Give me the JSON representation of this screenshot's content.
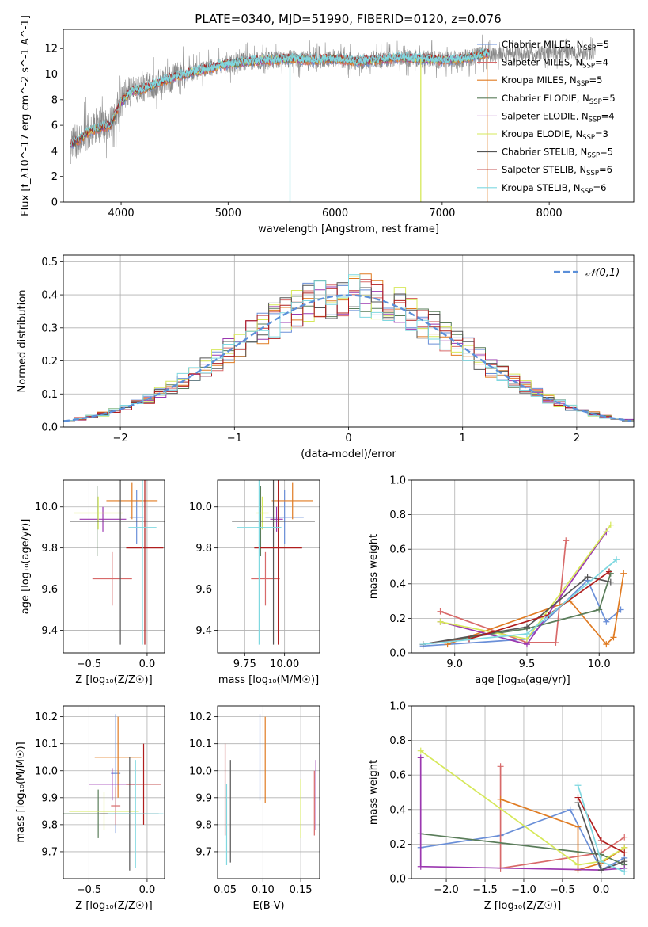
{
  "figure": {
    "suptitle": "PLATE=0340, MJD=51990, FIBERID=0120, z=0.076"
  },
  "series": [
    {
      "key": "chabrier_miles",
      "color": "#6a8fd8"
    },
    {
      "key": "salpeter_miles",
      "color": "#d86a6a"
    },
    {
      "key": "kroupa_miles",
      "color": "#e07b22"
    },
    {
      "key": "chabrier_elodie",
      "color": "#5a7d5a"
    },
    {
      "key": "salpeter_elodie",
      "color": "#9b38b0"
    },
    {
      "key": "kroupa_elodie",
      "color": "#d6e85a"
    },
    {
      "key": "chabrier_stelib",
      "color": "#555555"
    },
    {
      "key": "salpeter_stelib",
      "color": "#b01e1e"
    },
    {
      "key": "kroupa_stelib",
      "color": "#7fd8e0"
    }
  ],
  "colors": {
    "pink": "#e377c2",
    "spectrum_gray": "#888888",
    "gauss": "#5b8fd9"
  },
  "chart_data": [
    {
      "id": "spectrum",
      "type": "line",
      "title": "PLATE=0340, MJD=51990, FIBERID=0120, z=0.076",
      "xlabel": "wavelength [Angstrom, rest frame]",
      "ylabel": "Flux [f_λ10^-17 erg cm^-2 s^-1 A^-1]",
      "xlim": [
        3460,
        8790
      ],
      "ylim": [
        0,
        13.5
      ],
      "xticks": [
        4000,
        5000,
        6000,
        7000,
        8000
      ],
      "yticks": [
        0,
        2,
        4,
        6,
        8,
        10,
        12
      ],
      "grid": false,
      "legend_position": "right",
      "legend": [
        {
          "lib": "Chabrier MILES, N",
          "sub": "SSP",
          "n": "=5"
        },
        {
          "lib": "Salpeter MILES, N",
          "sub": "SSP",
          "n": "=4"
        },
        {
          "lib": "Kroupa MILES, N",
          "sub": "SSP",
          "n": "=5"
        },
        {
          "lib": "Chabrier ELODIE, N",
          "sub": "SSP",
          "n": "=5"
        },
        {
          "lib": "Salpeter ELODIE, N",
          "sub": "SSP",
          "n": "=4"
        },
        {
          "lib": "Kroupa ELODIE, N",
          "sub": "SSP",
          "n": "=3"
        },
        {
          "lib": "Chabrier STELIB, N",
          "sub": "SSP",
          "n": "=5"
        },
        {
          "lib": "Salpeter STELIB, N",
          "sub": "SSP",
          "n": "=6"
        },
        {
          "lib": "Kroupa STELIB, N",
          "sub": "SSP",
          "n": "=6"
        }
      ],
      "envelope": {
        "x": [
          3530,
          3600,
          3700,
          3800,
          3900,
          4000,
          4100,
          4200,
          4400,
          4600,
          4800,
          5000,
          5200,
          5400,
          5600,
          5800,
          6000,
          6200,
          6400,
          6600,
          6800,
          7000,
          7200,
          7400
        ],
        "y": [
          4.5,
          4.8,
          5.5,
          5.8,
          6.0,
          7.8,
          8.7,
          8.8,
          9.5,
          10.0,
          10.4,
          10.8,
          11.0,
          11.1,
          11.2,
          11.1,
          11.2,
          11.0,
          11.1,
          11.3,
          11.2,
          11.1,
          11.2,
          11.6
        ]
      },
      "data_range": [
        3530,
        8430
      ],
      "spikes": [
        {
          "x": 5578,
          "y": 0,
          "series": 8
        },
        {
          "x": 6800,
          "y": 0,
          "series": 5
        },
        {
          "x": 7420,
          "y": 0,
          "series": 2
        }
      ]
    },
    {
      "id": "residuals",
      "type": "histogram",
      "xlabel": "(data-model)/error",
      "ylabel": "Normed distribution",
      "xlim": [
        -2.5,
        2.5
      ],
      "ylim": [
        0,
        0.52
      ],
      "xticks": [
        -2,
        -1,
        0,
        1,
        2
      ],
      "yticks": [
        0.0,
        0.1,
        0.2,
        0.3,
        0.4,
        0.5
      ],
      "grid": true,
      "bin_width": 0.1,
      "gaussian": {
        "label": "𝒩(0,1)",
        "mean": 0,
        "sigma": 1
      },
      "legend_position": "top-right"
    },
    {
      "id": "age_vs_Z",
      "type": "scatter",
      "xlabel": "Z [log₁₀(Z/Z☉)]",
      "ylabel": "age  [log₁₀(age/yr)]",
      "xlim": [
        -0.72,
        0.15
      ],
      "ylim": [
        9.29,
        10.13
      ],
      "xticks": [
        -0.5,
        0.0
      ],
      "yticks": [
        9.4,
        9.6,
        9.8,
        10.0
      ],
      "grid": true,
      "points": [
        {
          "s": 0,
          "x": -0.09,
          "xerr": 0.06,
          "y": 9.95,
          "yerr": 0.13
        },
        {
          "s": 1,
          "x": -0.3,
          "xerr": 0.17,
          "y": 9.65,
          "yerr": 0.13
        },
        {
          "s": 2,
          "x": -0.13,
          "xerr": 0.22,
          "y": 10.03,
          "yerr": 0.09
        },
        {
          "s": 3,
          "x": -0.43,
          "xerr": 0.14,
          "y": 9.93,
          "yerr": 0.17
        },
        {
          "s": 4,
          "x": -0.38,
          "xerr": 0.2,
          "y": 9.94,
          "yerr": 0.06
        },
        {
          "s": 5,
          "x": -0.42,
          "xerr": 0.21,
          "y": 9.97,
          "yerr": 0.08
        },
        {
          "s": 6,
          "x": -0.23,
          "xerr": 0.43,
          "y": 9.93,
          "yerr": 0.6
        },
        {
          "s": 7,
          "x": -0.02,
          "xerr": 0.16,
          "y": 9.8,
          "yerr": 0.47
        },
        {
          "s": 8,
          "x": -0.04,
          "xerr": 0.12,
          "y": 9.9,
          "yerr": 0.57
        }
      ]
    },
    {
      "id": "age_vs_mass",
      "type": "scatter",
      "xlabel": "mass [log₁₀(M/M☉)]",
      "ylabel": "",
      "xlim": [
        9.58,
        10.22
      ],
      "ylim": [
        9.29,
        10.13
      ],
      "xticks": [
        9.75,
        10.0
      ],
      "xticklabels": [
        "9.75",
        "10.00"
      ],
      "yticks": [
        9.4,
        9.6,
        9.8,
        10.0
      ],
      "grid": true,
      "points": [
        {
          "s": 0,
          "x": 10.0,
          "xerr": 0.12,
          "y": 9.95,
          "yerr": 0.13
        },
        {
          "s": 1,
          "x": 9.88,
          "xerr": 0.09,
          "y": 9.65,
          "yerr": 0.13
        },
        {
          "s": 2,
          "x": 10.05,
          "xerr": 0.13,
          "y": 10.03,
          "yerr": 0.09
        },
        {
          "s": 3,
          "x": 9.85,
          "xerr": 0.08,
          "y": 9.93,
          "yerr": 0.17
        },
        {
          "s": 4,
          "x": 9.95,
          "xerr": 0.04,
          "y": 9.94,
          "yerr": 0.06
        },
        {
          "s": 5,
          "x": 9.86,
          "xerr": 0.04,
          "y": 9.97,
          "yerr": 0.08
        },
        {
          "s": 6,
          "x": 9.93,
          "xerr": 0.26,
          "y": 9.93,
          "yerr": 0.6
        },
        {
          "s": 7,
          "x": 9.96,
          "xerr": 0.15,
          "y": 9.8,
          "yerr": 0.47
        },
        {
          "s": 8,
          "x": 9.84,
          "xerr": 0.14,
          "y": 9.9,
          "yerr": 0.57
        }
      ]
    },
    {
      "id": "weight_vs_age",
      "type": "line",
      "xlabel": "age  [log₁₀(age/yr)]",
      "ylabel": "mass weight",
      "xlim": [
        8.7,
        10.24
      ],
      "ylim": [
        0,
        1.0
      ],
      "xticks": [
        9.0,
        9.5,
        10.0
      ],
      "yticks": [
        0.0,
        0.2,
        0.4,
        0.6,
        0.8,
        1.0
      ],
      "grid": true,
      "lines": [
        {
          "s": 0,
          "x": [
            8.78,
            9.5,
            9.92,
            10.05,
            10.15
          ],
          "y": [
            0.04,
            0.08,
            0.42,
            0.18,
            0.25
          ]
        },
        {
          "s": 1,
          "x": [
            8.9,
            9.5,
            9.7,
            9.77
          ],
          "y": [
            0.24,
            0.06,
            0.06,
            0.65
          ]
        },
        {
          "s": 2,
          "x": [
            8.95,
            9.8,
            10.05,
            10.1,
            10.17
          ],
          "y": [
            0.05,
            0.3,
            0.05,
            0.09,
            0.46
          ]
        },
        {
          "s": 3,
          "x": [
            8.78,
            9.5,
            10.0,
            10.08
          ],
          "y": [
            0.05,
            0.14,
            0.25,
            0.46
          ]
        },
        {
          "s": 4,
          "x": [
            8.9,
            9.5,
            10.05
          ],
          "y": [
            0.18,
            0.05,
            0.7
          ]
        },
        {
          "s": 5,
          "x": [
            8.9,
            9.5,
            10.08
          ],
          "y": [
            0.18,
            0.08,
            0.74
          ]
        },
        {
          "s": 6,
          "x": [
            8.78,
            9.5,
            9.92,
            10.08
          ],
          "y": [
            0.05,
            0.15,
            0.44,
            0.41
          ]
        },
        {
          "s": 7,
          "x": [
            8.78,
            9.1,
            9.65,
            10.07
          ],
          "y": [
            0.05,
            0.08,
            0.22,
            0.47
          ]
        },
        {
          "s": 8,
          "x": [
            8.78,
            9.5,
            10.12
          ],
          "y": [
            0.05,
            0.11,
            0.54
          ]
        }
      ]
    },
    {
      "id": "mass_vs_Z",
      "type": "scatter",
      "xlabel": "Z [log₁₀(Z/Z☉)]",
      "ylabel": "mass [log₁₀(M/M☉)]",
      "xlim": [
        -0.72,
        0.15
      ],
      "ylim": [
        9.6,
        10.24
      ],
      "xticks": [
        -0.5,
        0.0
      ],
      "yticks": [
        9.7,
        9.8,
        9.9,
        10.0,
        10.1,
        10.2
      ],
      "grid": true,
      "points": [
        {
          "s": 0,
          "x": -0.27,
          "xerr": 0.04,
          "y": 9.99,
          "yerr": 0.22
        },
        {
          "s": 1,
          "x": -0.27,
          "xerr": 0.04,
          "y": 9.87,
          "yerr": 0.07
        },
        {
          "s": 2,
          "x": -0.25,
          "xerr": 0.2,
          "y": 10.05,
          "yerr": 0.15
        },
        {
          "s": 3,
          "x": -0.42,
          "xerr": 0.3,
          "y": 9.84,
          "yerr": 0.09
        },
        {
          "s": 4,
          "x": -0.3,
          "xerr": 0.2,
          "y": 9.95,
          "yerr": 0.06
        },
        {
          "s": 5,
          "x": -0.37,
          "xerr": 0.3,
          "y": 9.85,
          "yerr": 0.07
        },
        {
          "s": 6,
          "x": -0.15,
          "xerr": 0.25,
          "y": 9.84,
          "yerr": 0.21
        },
        {
          "s": 7,
          "x": -0.03,
          "xerr": 0.15,
          "y": 9.95,
          "yerr": 0.15
        },
        {
          "s": 8,
          "x": -0.1,
          "xerr": 0.24,
          "y": 9.84,
          "yerr": 0.2
        }
      ]
    },
    {
      "id": "mass_vs_EBV",
      "type": "scatter",
      "xlabel": "E(B-V)",
      "ylabel": "",
      "xlim": [
        0.04,
        0.175
      ],
      "ylim": [
        9.6,
        10.24
      ],
      "xticks": [
        0.05,
        0.1,
        0.15
      ],
      "xticklabels": [
        "0.05",
        "0.10",
        "0.15"
      ],
      "yticks": [
        9.7,
        9.8,
        9.9,
        10.0,
        10.1,
        10.2
      ],
      "grid": true,
      "points": [
        {
          "s": 0,
          "x": 0.096,
          "xerr": 0,
          "y": 10.05,
          "yerr": 0.16
        },
        {
          "s": 2,
          "x": 0.103,
          "xerr": 0,
          "y": 10.04,
          "yerr": 0.16
        },
        {
          "s": 5,
          "x": 0.15,
          "xerr": 0,
          "y": 9.86,
          "yerr": 0.11
        },
        {
          "s": 4,
          "x": 0.17,
          "xerr": 0,
          "y": 9.91,
          "yerr": 0.13
        },
        {
          "s": 1,
          "x": 0.168,
          "xerr": 0,
          "y": 9.88,
          "yerr": 0.12
        },
        {
          "s": 6,
          "x": 0.057,
          "xerr": 0,
          "y": 9.85,
          "yerr": 0.19
        },
        {
          "s": 7,
          "x": 0.05,
          "xerr": 0,
          "y": 9.93,
          "yerr": 0.17
        },
        {
          "s": 8,
          "x": 0.052,
          "xerr": 0,
          "y": 9.8,
          "yerr": 0.15
        }
      ]
    },
    {
      "id": "weight_vs_Z",
      "type": "line",
      "xlabel": "Z [log₁₀(Z/Z☉)]",
      "ylabel": "mass weight",
      "xlim": [
        -2.45,
        0.42
      ],
      "ylim": [
        0,
        1.0
      ],
      "xticks": [
        -2.0,
        -1.5,
        -1.0,
        -0.5,
        0.0
      ],
      "yticks": [
        0.0,
        0.2,
        0.4,
        0.6,
        0.8,
        1.0
      ],
      "grid": true,
      "lines": [
        {
          "s": 0,
          "x": [
            -2.33,
            -1.3,
            -0.4,
            0.0,
            0.3
          ],
          "y": [
            0.18,
            0.25,
            0.4,
            0.05,
            0.12
          ]
        },
        {
          "s": 1,
          "x": [
            -1.3,
            -1.3,
            0.0,
            0.3
          ],
          "y": [
            0.65,
            0.06,
            0.15,
            0.24
          ]
        },
        {
          "s": 2,
          "x": [
            -1.3,
            -0.3,
            -0.3,
            0.0,
            0.3
          ],
          "y": [
            0.46,
            0.3,
            0.05,
            0.09,
            0.18
          ]
        },
        {
          "s": 3,
          "x": [
            -2.33,
            0.0,
            0.3
          ],
          "y": [
            0.26,
            0.14,
            0.08
          ]
        },
        {
          "s": 4,
          "x": [
            -2.33,
            -2.33,
            0.0,
            0.3
          ],
          "y": [
            0.7,
            0.07,
            0.05,
            0.06
          ]
        },
        {
          "s": 5,
          "x": [
            -2.33,
            -0.3,
            0.0,
            0.3
          ],
          "y": [
            0.74,
            0.08,
            0.1,
            0.18
          ]
        },
        {
          "s": 6,
          "x": [
            -0.3,
            0.0,
            0.3
          ],
          "y": [
            0.44,
            0.05,
            0.1
          ]
        },
        {
          "s": 7,
          "x": [
            -0.3,
            0.0,
            0.3
          ],
          "y": [
            0.47,
            0.22,
            0.15
          ]
        },
        {
          "s": 8,
          "x": [
            -0.3,
            0.0,
            0.3
          ],
          "y": [
            0.54,
            0.1,
            0.04
          ]
        }
      ]
    }
  ]
}
